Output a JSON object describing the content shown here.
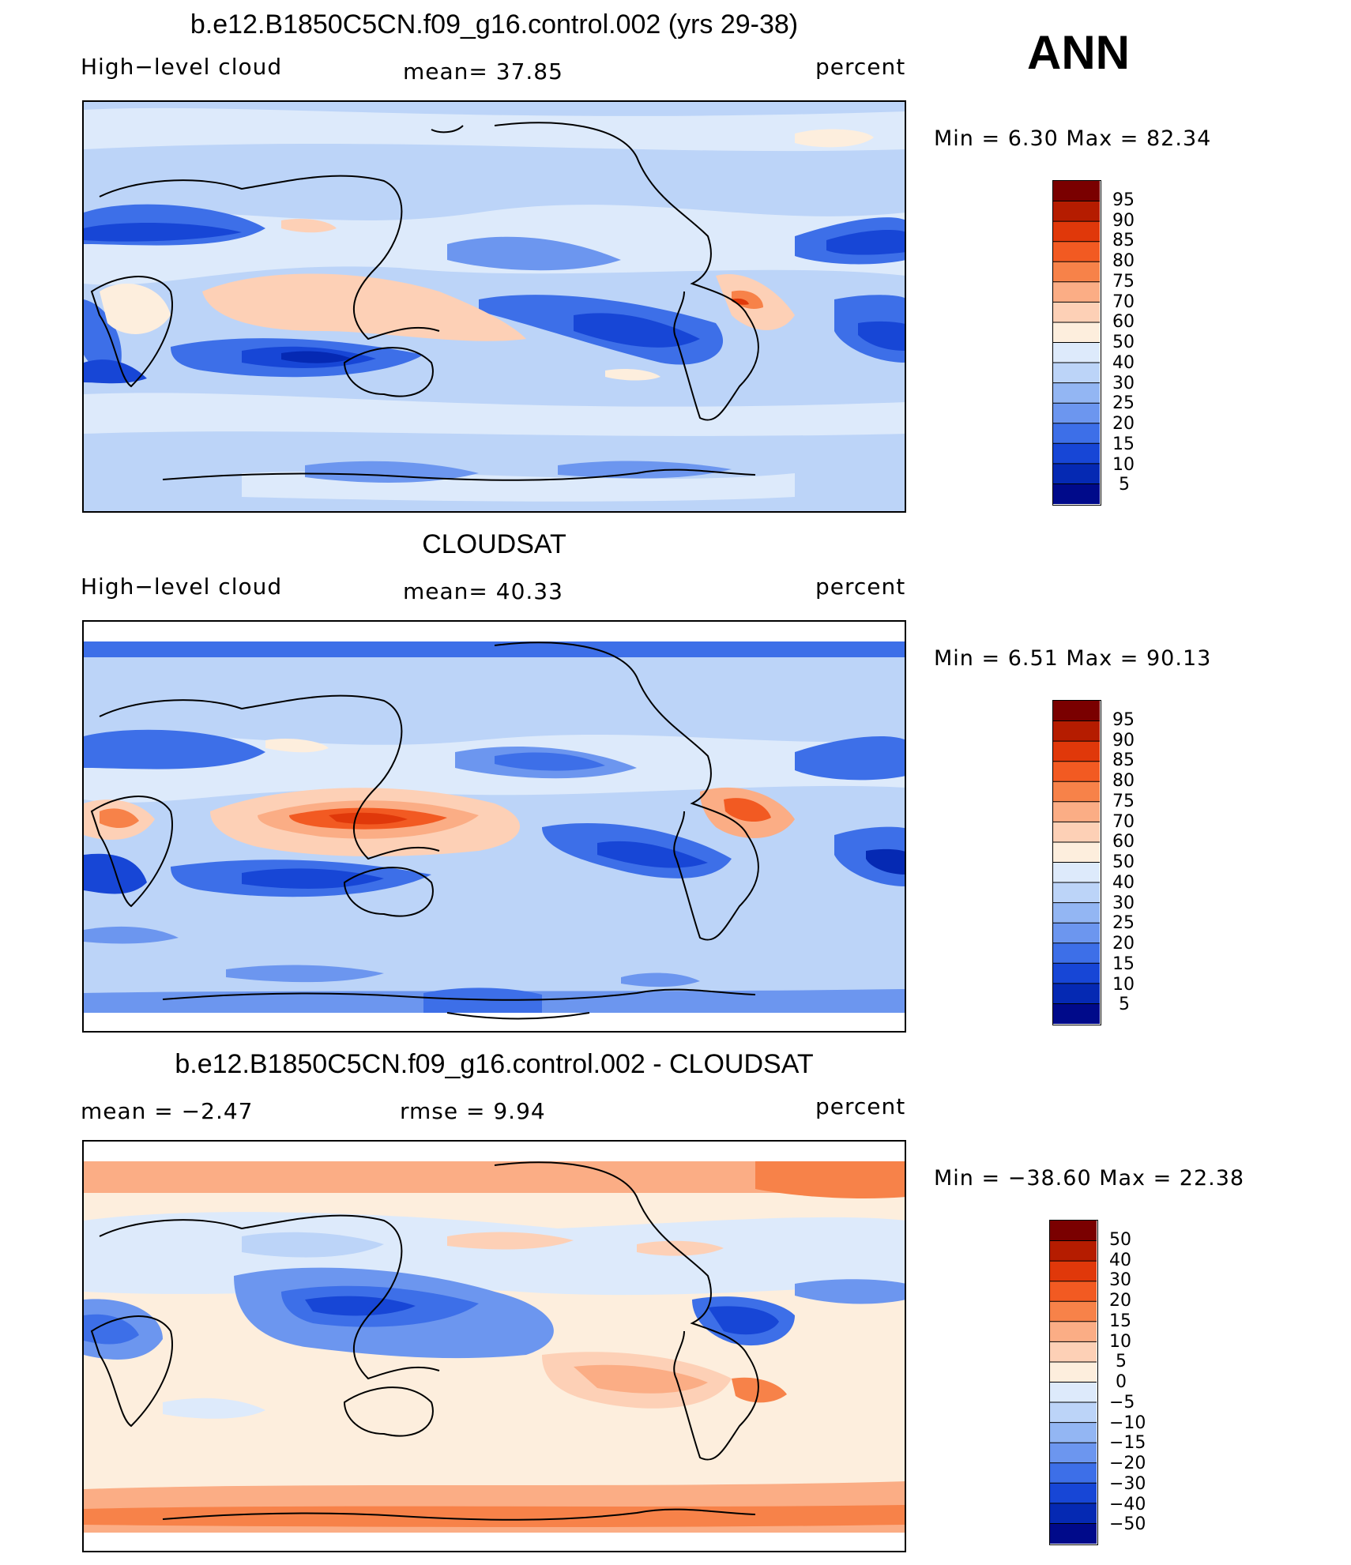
{
  "season": "ANN",
  "unit_label": "percent",
  "panels": [
    {
      "title": "b.e12.B1850C5CN.f09_g16.control.002 (yrs 29-38)",
      "left_label": "High−level cloud",
      "center_label": "mean=   37.85",
      "right_label": "percent",
      "minmax": "Min  =     6.30  Max  =    82.34",
      "colorbar": {
        "labels": [
          "95",
          "90",
          "85",
          "80",
          "75",
          "70",
          "60",
          "50",
          "40",
          "30",
          "25",
          "20",
          "15",
          "10",
          "5"
        ],
        "colors": [
          "#7a0000",
          "#b51c00",
          "#e0380a",
          "#f25a22",
          "#f78249",
          "#fbad85",
          "#fdd0b6",
          "#fdeedd",
          "#ddeafb",
          "#bcd4f8",
          "#93b6f3",
          "#6c96ef",
          "#3d6fe8",
          "#1746d6",
          "#0529b3",
          "#000a8a"
        ]
      }
    },
    {
      "title": "CLOUDSAT",
      "left_label": "High−level cloud",
      "center_label": "mean=   40.33",
      "right_label": "percent",
      "minmax": "Min  =     6.51  Max  =    90.13",
      "colorbar": {
        "labels": [
          "95",
          "90",
          "85",
          "80",
          "75",
          "70",
          "60",
          "50",
          "40",
          "30",
          "25",
          "20",
          "15",
          "10",
          "5"
        ],
        "colors": [
          "#7a0000",
          "#b51c00",
          "#e0380a",
          "#f25a22",
          "#f78249",
          "#fbad85",
          "#fdd0b6",
          "#fdeedd",
          "#ddeafb",
          "#bcd4f8",
          "#93b6f3",
          "#6c96ef",
          "#3d6fe8",
          "#1746d6",
          "#0529b3",
          "#000a8a"
        ]
      }
    },
    {
      "title": "b.e12.B1850C5CN.f09_g16.control.002 - CLOUDSAT",
      "left_label": "mean  =    −2.47",
      "center_label": "rmse  =     9.94",
      "right_label": "percent",
      "minmax": "Min  = −38.60  Max  =    22.38",
      "colorbar": {
        "labels": [
          "50",
          "40",
          "30",
          "20",
          "15",
          "10",
          "5",
          "0",
          "−5",
          "−10",
          "−15",
          "−20",
          "−30",
          "−40",
          "−50"
        ],
        "colors": [
          "#7a0000",
          "#b51c00",
          "#e0380a",
          "#f25a22",
          "#f78249",
          "#fbad85",
          "#fdd0b6",
          "#fdeedd",
          "#ddeafb",
          "#bcd4f8",
          "#93b6f3",
          "#6c96ef",
          "#3d6fe8",
          "#1746d6",
          "#0529b3",
          "#000a8a"
        ]
      }
    }
  ]
}
